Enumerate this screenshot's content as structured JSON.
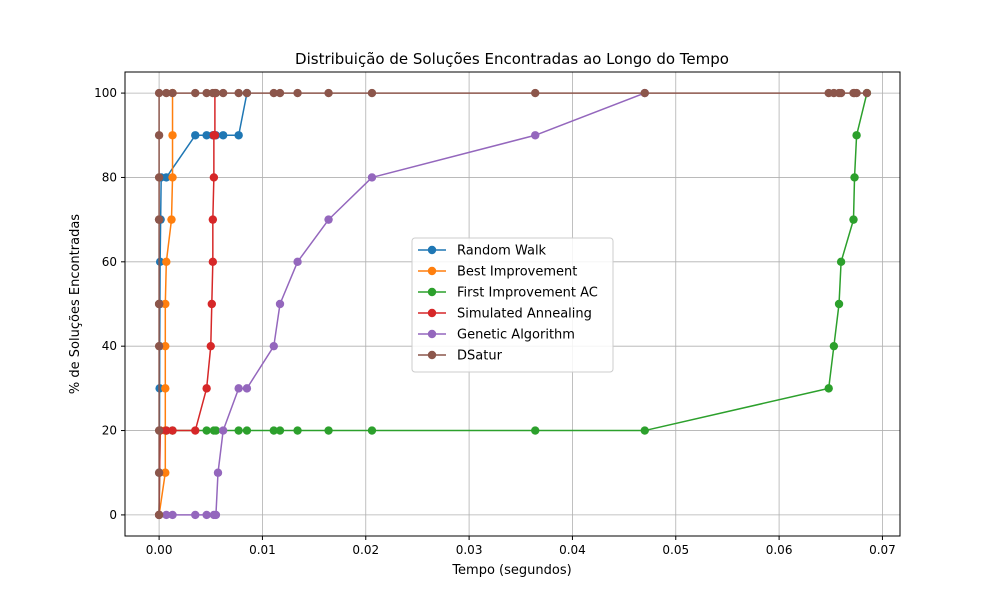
{
  "chart_data": {
    "type": "line",
    "title": "Distribuição de Soluções Encontradas ao Longo do Tempo",
    "xlabel": "Tempo (segundos)",
    "ylabel": "% de Soluções Encontradas",
    "xlim": [
      -0.0033,
      0.0717
    ],
    "ylim": [
      -5,
      105
    ],
    "xticks": [
      0.0,
      0.01,
      0.02,
      0.03,
      0.04,
      0.05,
      0.06,
      0.07
    ],
    "xtick_labels": [
      "0.00",
      "0.01",
      "0.02",
      "0.03",
      "0.04",
      "0.05",
      "0.06",
      "0.07"
    ],
    "yticks": [
      0,
      20,
      40,
      60,
      80,
      100
    ],
    "ytick_labels": [
      "0",
      "20",
      "40",
      "60",
      "80",
      "100"
    ],
    "grid": true,
    "legend_position": "center",
    "marker": "circle",
    "series": [
      {
        "name": "Random Walk",
        "color": "#1f77b4",
        "x": [
          1e-05,
          2e-05,
          3e-05,
          4e-05,
          5e-05,
          6e-05,
          8e-05,
          0.0001,
          0.00015,
          0.0002,
          0.0007,
          0.0035,
          0.0046,
          0.0052,
          0.0055,
          0.0062,
          0.0077,
          0.0085
        ],
        "y": [
          0,
          10,
          20,
          20,
          30,
          40,
          50,
          60,
          70,
          80,
          80,
          90,
          90,
          90,
          90,
          90,
          90,
          100
        ]
      },
      {
        "name": "Best Improvement",
        "color": "#ff7f0e",
        "x": [
          0.0,
          0.0006,
          0.0006,
          0.0006,
          0.0006,
          0.0006,
          0.0007,
          0.0012,
          0.0013,
          0.0013,
          0.0013
        ],
        "y": [
          0,
          10,
          20,
          30,
          40,
          50,
          60,
          70,
          80,
          90,
          100
        ]
      },
      {
        "name": "First Improvement AC",
        "color": "#2ca02c",
        "x": [
          0.0,
          0.0001,
          0.0007,
          0.0013,
          0.0046,
          0.0053,
          0.0055,
          0.0077,
          0.0085,
          0.0111,
          0.0117,
          0.0134,
          0.0164,
          0.0206,
          0.0364,
          0.047,
          0.0648,
          0.0653,
          0.0658,
          0.066,
          0.0672,
          0.0673,
          0.0675,
          0.0685
        ],
        "y": [
          0,
          20,
          20,
          20,
          20,
          20,
          20,
          20,
          20,
          20,
          20,
          20,
          20,
          20,
          20,
          20,
          30,
          40,
          50,
          60,
          70,
          80,
          90,
          100
        ]
      },
      {
        "name": "Simulated Annealing",
        "color": "#d62728",
        "x": [
          0.0,
          0.0001,
          0.0007,
          0.0013,
          0.0035,
          0.0046,
          0.005,
          0.0051,
          0.0052,
          0.0052,
          0.0053,
          0.0053,
          0.0053,
          0.0054,
          0.0054
        ],
        "y": [
          0,
          20,
          20,
          20,
          20,
          30,
          40,
          50,
          60,
          70,
          80,
          90,
          90,
          90,
          100
        ]
      },
      {
        "name": "Genetic Algorithm",
        "color": "#9467bd",
        "x": [
          0.0,
          0.0007,
          0.0013,
          0.0035,
          0.0046,
          0.0053,
          0.0055,
          0.0057,
          0.0062,
          0.0077,
          0.0085,
          0.0111,
          0.0117,
          0.0134,
          0.0164,
          0.0206,
          0.0364,
          0.047
        ],
        "y": [
          0,
          0,
          0,
          0,
          0,
          0,
          0,
          10,
          20,
          30,
          30,
          40,
          50,
          60,
          70,
          80,
          90,
          100
        ]
      },
      {
        "name": "DSatur",
        "color": "#8c564b",
        "x": [
          0.0,
          0.0,
          0.0,
          0.0,
          0.0,
          0.0,
          0.0,
          0.0,
          0.0,
          0.0,
          0.0,
          0.0007,
          0.0013,
          0.0035,
          0.0046,
          0.0052,
          0.0055,
          0.0062,
          0.0077,
          0.0085,
          0.0111,
          0.0117,
          0.0134,
          0.0164,
          0.0206,
          0.0364,
          0.047,
          0.0648,
          0.0653,
          0.0658,
          0.066,
          0.0672,
          0.0673,
          0.0675,
          0.0685
        ],
        "y": [
          0,
          10,
          20,
          40,
          50,
          70,
          80,
          90,
          70,
          50,
          100,
          100,
          100,
          100,
          100,
          100,
          100,
          100,
          100,
          100,
          100,
          100,
          100,
          100,
          100,
          100,
          100,
          100,
          100,
          100,
          100,
          100,
          100,
          100,
          100
        ]
      }
    ]
  }
}
